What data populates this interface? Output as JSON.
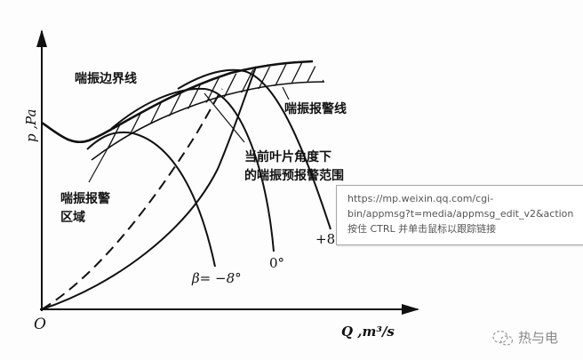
{
  "diagram": {
    "y_axis_label": "p ,Pa",
    "x_axis_label": "Q ,m³/s",
    "origin_label": "O",
    "surge_boundary_label": "喘振边界线",
    "surge_alarm_line_label": "喘振报警线",
    "pre_alarm_range_label_line1": "当前叶片角度下",
    "pre_alarm_range_label_line2": "的喘振预报警范围",
    "surge_alarm_zone_label_line1": "喘振报警",
    "surge_alarm_zone_label_line2": "区域",
    "curve_labels": [
      "β= −8°",
      "0°",
      "+8"
    ]
  },
  "tooltip": {
    "line1": "https://mp.weixin.qq.com/cgi-",
    "line2": "bin/appmsg?t=media/appmsg_edit_v2&action",
    "line3": "按住 CTRL 并单击鼠标以跟踪链接"
  },
  "watermark": {
    "text": "热与电",
    "icon": "wechat-icon"
  }
}
